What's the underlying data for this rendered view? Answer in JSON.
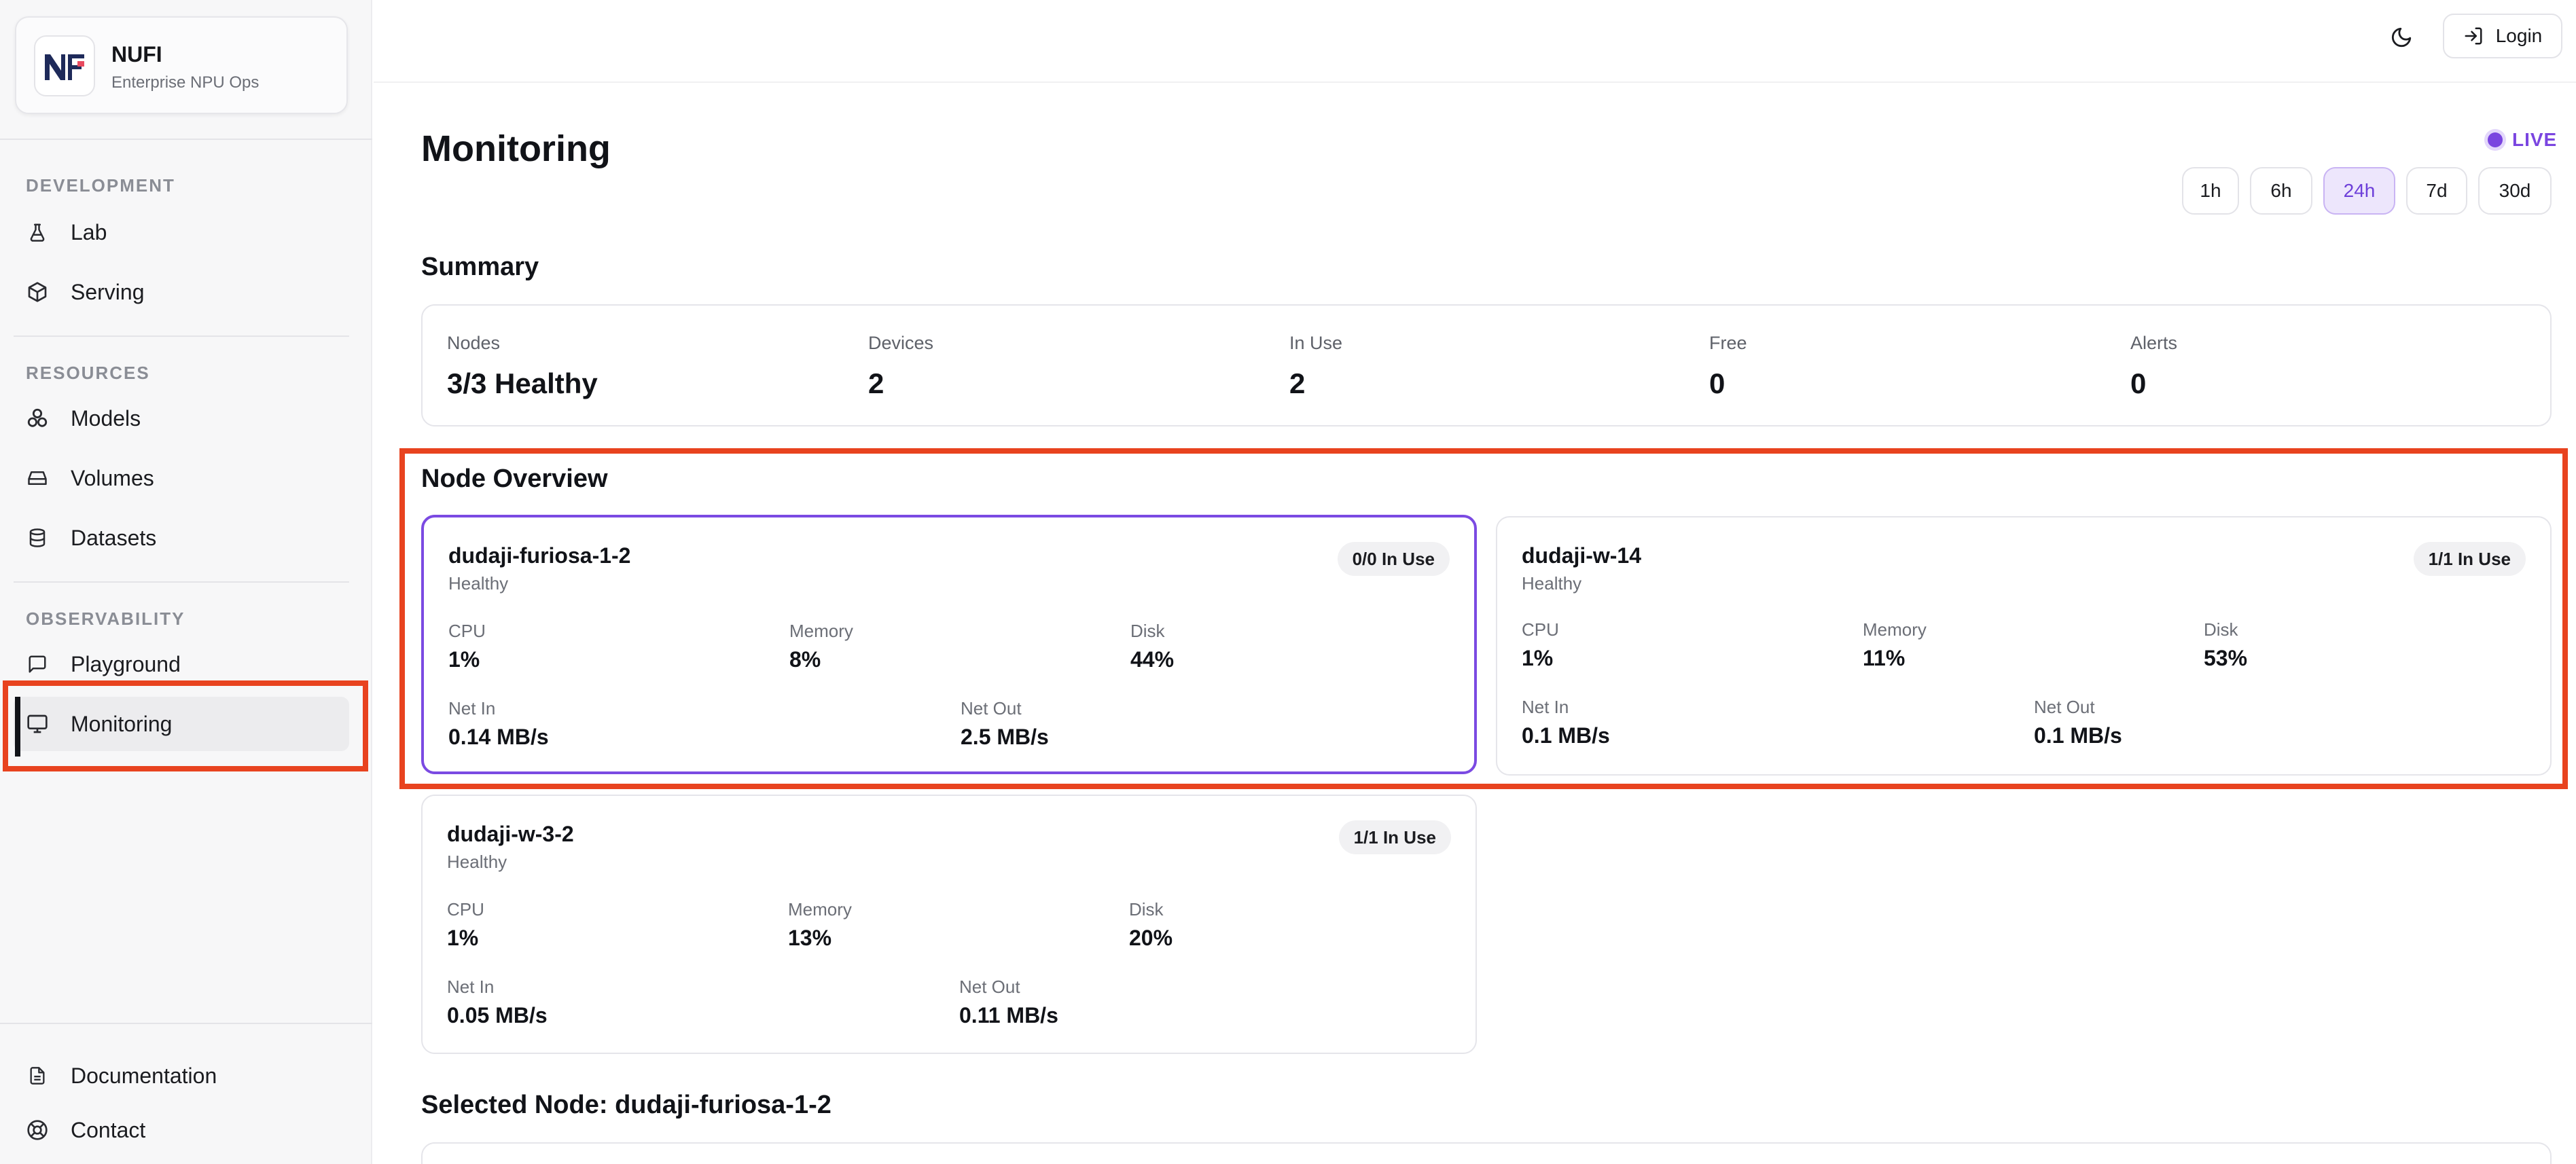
{
  "brand": {
    "name": "NUFI",
    "subtitle": "Enterprise NPU Ops"
  },
  "sidebar": {
    "sections": [
      {
        "label": "DEVELOPMENT"
      },
      {
        "label": "RESOURCES"
      },
      {
        "label": "OBSERVABILITY"
      }
    ],
    "items": [
      {
        "label": "Lab",
        "icon": "flask-icon"
      },
      {
        "label": "Serving",
        "icon": "cube-icon"
      },
      {
        "label": "Models",
        "icon": "models-icon"
      },
      {
        "label": "Volumes",
        "icon": "drive-icon"
      },
      {
        "label": "Datasets",
        "icon": "database-icon"
      },
      {
        "label": "Playground",
        "icon": "chat-icon"
      },
      {
        "label": "Monitoring",
        "icon": "monitor-icon",
        "active": true
      }
    ],
    "footer": [
      {
        "label": "Documentation",
        "icon": "document-icon"
      },
      {
        "label": "Contact",
        "icon": "lifebuoy-icon"
      }
    ]
  },
  "topbar": {
    "login_label": "Login",
    "theme_icon": "moon-icon"
  },
  "page": {
    "title": "Monitoring",
    "live_label": "LIVE",
    "ranges": [
      "1h",
      "6h",
      "24h",
      "7d",
      "30d"
    ],
    "active_range": "24h"
  },
  "summary": {
    "title": "Summary",
    "items": [
      {
        "label": "Nodes",
        "value": "3/3 Healthy"
      },
      {
        "label": "Devices",
        "value": "2"
      },
      {
        "label": "In Use",
        "value": "2"
      },
      {
        "label": "Free",
        "value": "0"
      },
      {
        "label": "Alerts",
        "value": "0"
      }
    ]
  },
  "node_overview": {
    "title": "Node Overview",
    "nodes": [
      {
        "name": "dudaji-furiosa-1-2",
        "status": "Healthy",
        "badge": "0/0 In Use",
        "selected": true,
        "cpu_label": "CPU",
        "cpu": "1%",
        "memory_label": "Memory",
        "memory": "8%",
        "disk_label": "Disk",
        "disk": "44%",
        "net_in_label": "Net In",
        "net_in": "0.14 MB/s",
        "net_out_label": "Net Out",
        "net_out": "2.5 MB/s"
      },
      {
        "name": "dudaji-w-14",
        "status": "Healthy",
        "badge": "1/1 In Use",
        "selected": false,
        "cpu_label": "CPU",
        "cpu": "1%",
        "memory_label": "Memory",
        "memory": "11%",
        "disk_label": "Disk",
        "disk": "53%",
        "net_in_label": "Net In",
        "net_in": "0.1 MB/s",
        "net_out_label": "Net Out",
        "net_out": "0.1 MB/s"
      },
      {
        "name": "dudaji-w-3-2",
        "status": "Healthy",
        "badge": "1/1 In Use",
        "selected": false,
        "cpu_label": "CPU",
        "cpu": "1%",
        "memory_label": "Memory",
        "memory": "13%",
        "disk_label": "Disk",
        "disk": "20%",
        "net_in_label": "Net In",
        "net_in": "0.05 MB/s",
        "net_out_label": "Net Out",
        "net_out": "0.11 MB/s"
      }
    ]
  },
  "selected_node": {
    "title": "Selected Node: dudaji-furiosa-1-2"
  },
  "colors": {
    "accent": "#7a45e0",
    "highlight": "#e8431f",
    "sidebar_bg": "#f7f7f8"
  }
}
